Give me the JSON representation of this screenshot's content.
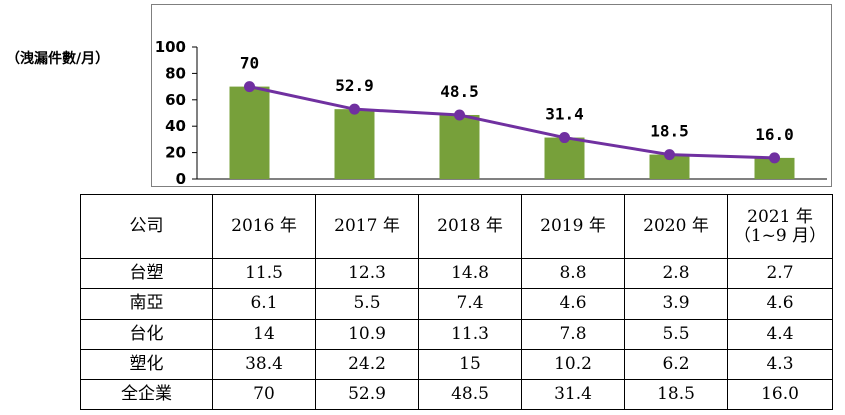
{
  "chart_data": {
    "type": "bar",
    "ylabel": "（洩漏件數/月）",
    "ylim": [
      0,
      100
    ],
    "yticks": [
      0,
      20,
      40,
      60,
      80,
      100
    ],
    "categories": [
      "2016 年",
      "2017 年",
      "2018 年",
      "2019 年",
      "2020 年",
      "2021 年（1~9 月）"
    ],
    "values": [
      70,
      52.9,
      48.5,
      31.4,
      18.5,
      16.0
    ],
    "data_labels": [
      "70",
      "52.9",
      "48.5",
      "31.4",
      "18.5",
      "16.0"
    ],
    "overlay": "line",
    "grid": false,
    "legend": "none",
    "bar_color": "#77a03a",
    "line_color": "#7030a0"
  },
  "table": {
    "headers": [
      "公司",
      "2016 年",
      "2017 年",
      "2018 年",
      "2019 年",
      "2020 年",
      "2021 年",
      "（1~9 月）"
    ],
    "rows": [
      [
        "台塑",
        "11.5",
        "12.3",
        "14.8",
        "8.8",
        "2.8",
        "2.7"
      ],
      [
        "南亞",
        "6.1",
        "5.5",
        "7.4",
        "4.6",
        "3.9",
        "4.6"
      ],
      [
        "台化",
        "14",
        "10.9",
        "11.3",
        "7.8",
        "5.5",
        "4.4"
      ],
      [
        "塑化",
        "38.4",
        "24.2",
        "15",
        "10.2",
        "6.2",
        "4.3"
      ],
      [
        "全企業",
        "70",
        "52.9",
        "48.5",
        "31.4",
        "18.5",
        "16.0"
      ]
    ]
  }
}
